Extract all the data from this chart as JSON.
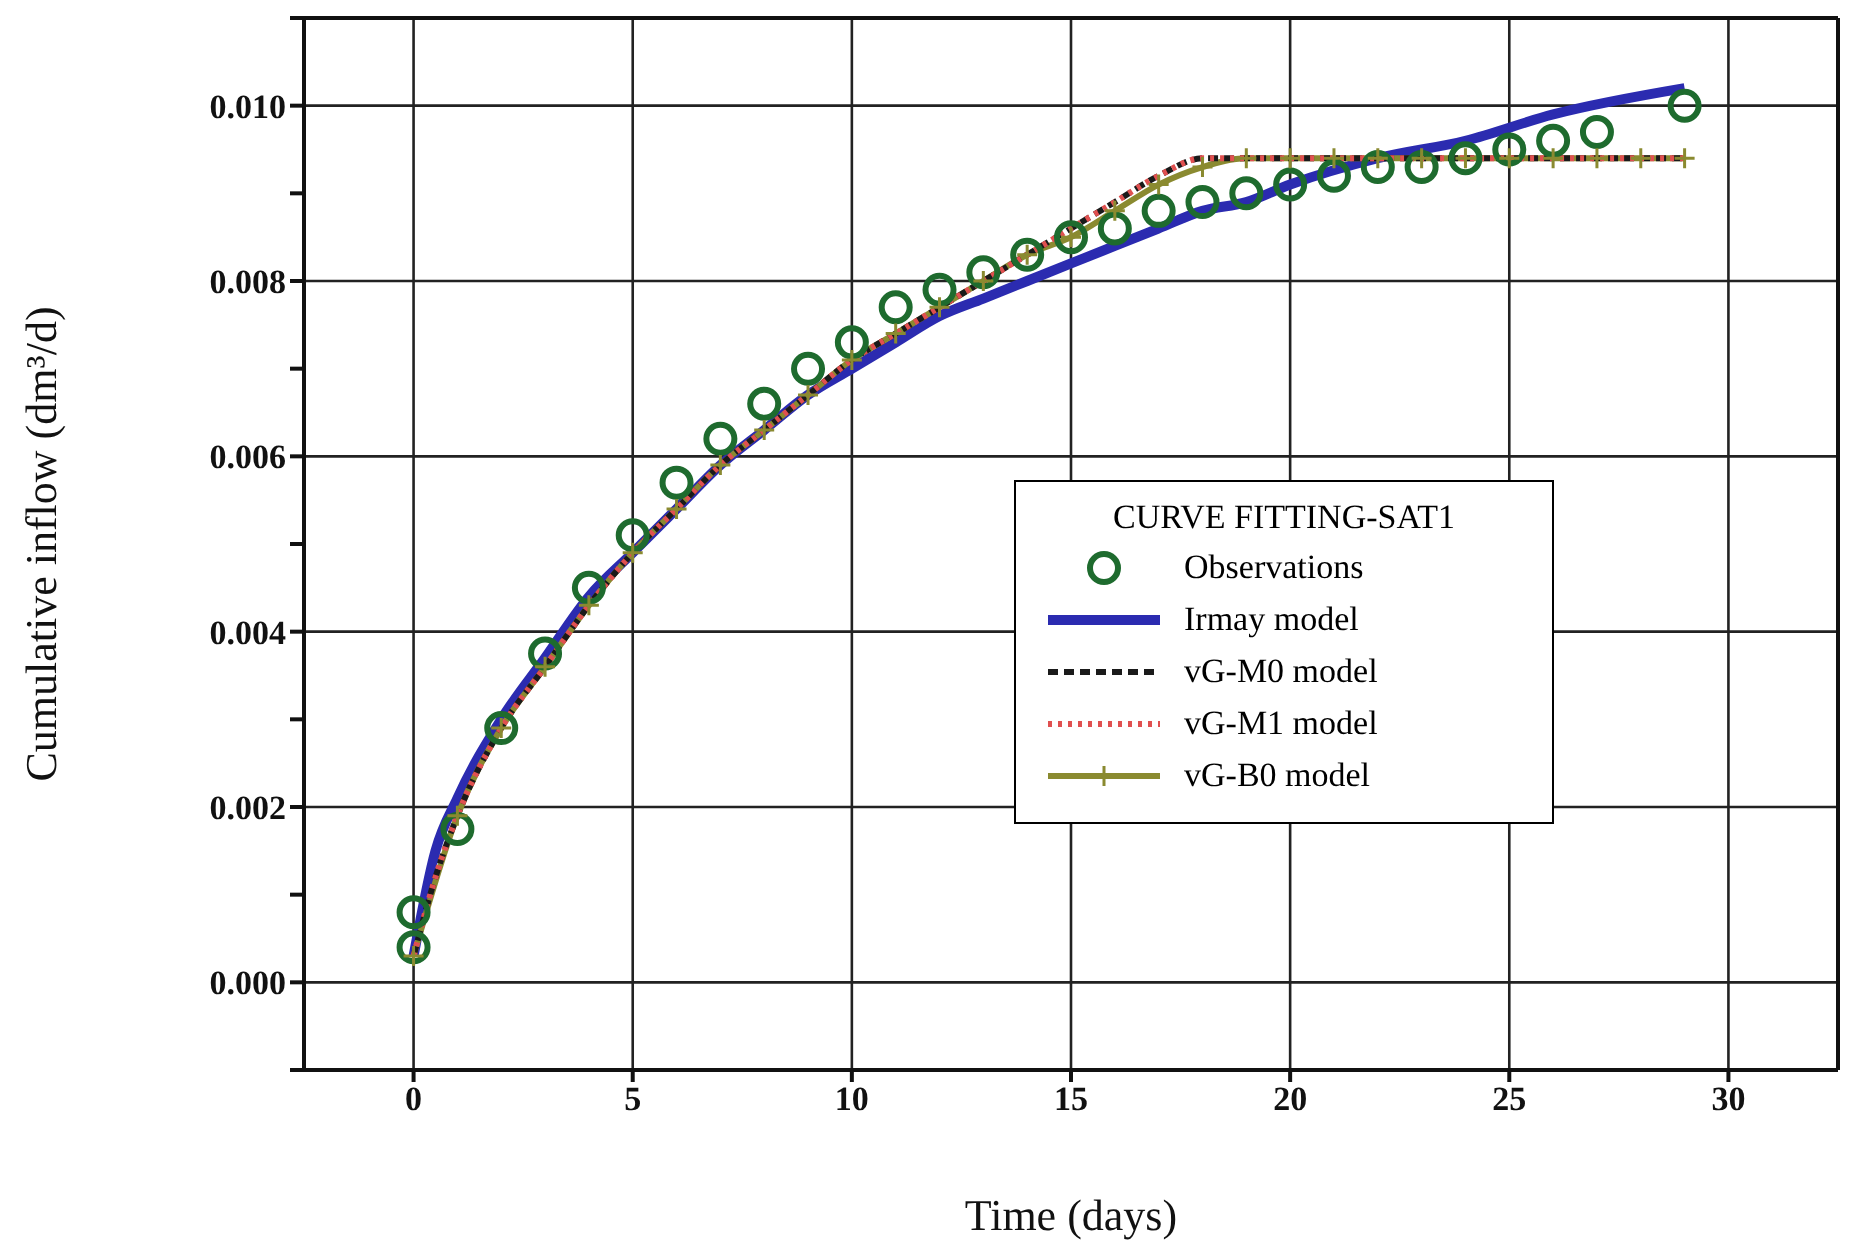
{
  "chart_data": {
    "type": "line",
    "xlabel": "Time (days)",
    "ylabel": "Cumulative inflow (dm³/d)",
    "legend_title": "CURVE FITTING-SAT1",
    "xlim": [
      -2.5,
      32.5
    ],
    "xticks": [
      0,
      5,
      10,
      15,
      20,
      25,
      30
    ],
    "ylim": [
      -0.001,
      0.011
    ],
    "yticks": [
      {
        "value": -0.001,
        "label": null
      },
      {
        "value": 0,
        "label": "0.000"
      },
      {
        "value": 0.001,
        "label": null
      },
      {
        "value": 0.002,
        "label": "0.002"
      },
      {
        "value": 0.003,
        "label": null
      },
      {
        "value": 0.004,
        "label": "0.004"
      },
      {
        "value": 0.005,
        "label": null
      },
      {
        "value": 0.006,
        "label": "0.006"
      },
      {
        "value": 0.007,
        "label": null
      },
      {
        "value": 0.008,
        "label": "0.008"
      },
      {
        "value": 0.009,
        "label": null
      },
      {
        "value": 0.01,
        "label": "0.010"
      },
      {
        "value": 0.011,
        "label": null
      }
    ],
    "grid": true,
    "legend": "right",
    "series": [
      {
        "name": "Observations",
        "type": "scatter",
        "marker": "circle",
        "color": "#1e6b2e",
        "x": [
          0,
          0,
          1,
          2,
          3,
          4,
          5,
          6,
          7,
          8,
          9,
          10,
          11,
          12,
          13,
          14,
          15,
          16,
          17,
          18,
          19,
          20,
          21,
          22,
          23,
          24,
          25,
          26,
          27,
          29
        ],
        "values": [
          0.0004,
          0.0008,
          0.00175,
          0.0029,
          0.00375,
          0.0045,
          0.0051,
          0.0057,
          0.0062,
          0.0066,
          0.007,
          0.0073,
          0.0077,
          0.0079,
          0.0081,
          0.0083,
          0.0085,
          0.0086,
          0.0088,
          0.0089,
          0.009,
          0.0091,
          0.0092,
          0.0093,
          0.0093,
          0.0094,
          0.0095,
          0.0096,
          0.0097,
          0.01
        ]
      },
      {
        "name": "Irmay model",
        "line_style": "solid",
        "color": "#2b2bb0",
        "x": [
          0,
          0.5,
          1,
          2,
          3,
          4,
          5,
          6,
          7,
          8,
          9,
          10,
          11,
          12,
          13,
          14,
          15,
          16,
          17,
          18,
          19,
          20,
          22,
          24,
          26,
          29
        ],
        "values": [
          0.0003,
          0.0015,
          0.0021,
          0.003,
          0.0037,
          0.0044,
          0.0049,
          0.0054,
          0.0059,
          0.0063,
          0.0067,
          0.007,
          0.0073,
          0.0076,
          0.0078,
          0.008,
          0.0082,
          0.0084,
          0.0086,
          0.0088,
          0.0089,
          0.0091,
          0.0094,
          0.0096,
          0.0099,
          0.0102
        ]
      },
      {
        "name": "vG-M0 model",
        "line_style": "dashed",
        "color": "#1a1a1a",
        "x": [
          0,
          0.5,
          1,
          2,
          3,
          4,
          5,
          6,
          7,
          8,
          9,
          10,
          11,
          12,
          13,
          14,
          15,
          16,
          17,
          18,
          20,
          25,
          29
        ],
        "values": [
          0.0003,
          0.0012,
          0.0019,
          0.0029,
          0.0036,
          0.0043,
          0.0049,
          0.0054,
          0.0059,
          0.0063,
          0.0067,
          0.0071,
          0.0074,
          0.0077,
          0.008,
          0.0083,
          0.0086,
          0.0089,
          0.0092,
          0.0094,
          0.0094,
          0.0094,
          0.0094
        ]
      },
      {
        "name": "vG-M1 model",
        "line_style": "dotted",
        "color": "#e05050",
        "x": [
          0,
          0.5,
          1,
          2,
          3,
          4,
          5,
          6,
          7,
          8,
          9,
          10,
          11,
          12,
          13,
          14,
          15,
          16,
          17,
          18,
          20,
          25,
          29
        ],
        "values": [
          0.0003,
          0.0012,
          0.0019,
          0.0029,
          0.0036,
          0.0043,
          0.0049,
          0.0054,
          0.0059,
          0.0063,
          0.0067,
          0.0071,
          0.0074,
          0.0077,
          0.008,
          0.0083,
          0.0086,
          0.0089,
          0.0092,
          0.0094,
          0.0094,
          0.0094,
          0.0094
        ]
      },
      {
        "name": "vG-B0 model",
        "line_style": "solid",
        "marker": "cross",
        "color": "#8a8a30",
        "x": [
          0,
          1,
          2,
          3,
          4,
          5,
          6,
          7,
          8,
          9,
          10,
          11,
          12,
          13,
          14,
          15,
          16,
          17,
          18,
          19,
          20,
          21,
          22,
          23,
          24,
          25,
          26,
          27,
          28,
          29
        ],
        "values": [
          0.0003,
          0.0019,
          0.0029,
          0.0036,
          0.0043,
          0.0049,
          0.0054,
          0.0059,
          0.0063,
          0.0067,
          0.0071,
          0.0074,
          0.0077,
          0.008,
          0.0083,
          0.0085,
          0.0088,
          0.0091,
          0.0093,
          0.0094,
          0.0094,
          0.0094,
          0.0094,
          0.0094,
          0.0094,
          0.0094,
          0.0094,
          0.0094,
          0.0094,
          0.0094
        ]
      }
    ]
  }
}
